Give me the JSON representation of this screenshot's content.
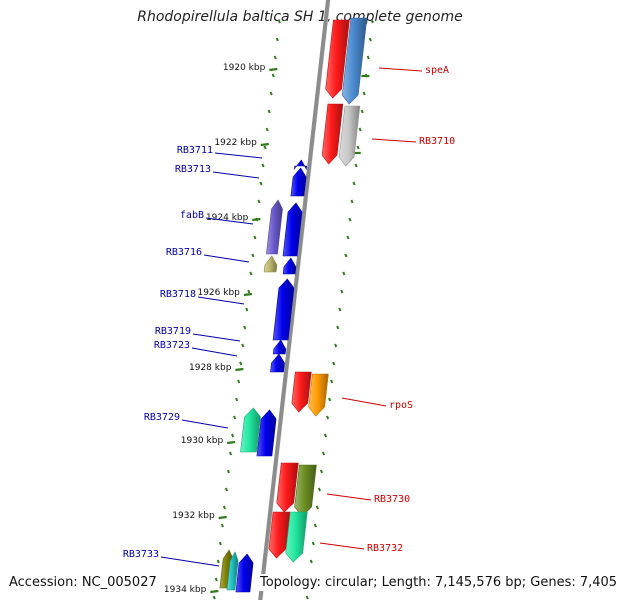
{
  "title": "Rhodopirellula baltica SH 1, complete genome",
  "footer": {
    "accession": "Accession: NC_005027",
    "topology": "Topology: circular; Length: 7,145,576 bp; Genes: 7,405"
  },
  "colors": {
    "backbone": "#8c8c8c",
    "tick": "#2e7d1a",
    "forward_label": "#cc0000",
    "reverse_label": "#0000aa"
  },
  "kbp_ticks": [
    "1920 kbp",
    "1922 kbp",
    "1924 kbp",
    "1926 kbp",
    "1928 kbp",
    "1930 kbp",
    "1932 kbp",
    "1934 kbp"
  ],
  "forward_genes": [
    {
      "name": "speA",
      "color": "#ff1a1a"
    },
    {
      "name": "",
      "color": "#4a8ad0"
    },
    {
      "name": "RB3710",
      "color": "#ff1a1a"
    },
    {
      "name": "",
      "color": "#c8c8c8"
    },
    {
      "name": "rpoS",
      "color": "#ff1a1a"
    },
    {
      "name": "",
      "color": "#ff9a00"
    },
    {
      "name": "RB3730",
      "color": "#ff1a1a"
    },
    {
      "name": "",
      "color": "#6b8e23"
    },
    {
      "name": "RB3732",
      "color": "#ff1a1a"
    },
    {
      "name": "",
      "color": "#20e8a0"
    }
  ],
  "reverse_genes": [
    {
      "name": "RB3711",
      "color": "#0000ee"
    },
    {
      "name": "RB3713",
      "color": "#0000ee"
    },
    {
      "name": "fabB",
      "color": "#6a5acd"
    },
    {
      "name": "",
      "color": "#0000ee"
    },
    {
      "name": "RB3716",
      "color": "#bdb76b"
    },
    {
      "name": "",
      "color": "#0000ee"
    },
    {
      "name": "RB3718",
      "color": "#0000ee"
    },
    {
      "name": "RB3719",
      "color": "#0000ee"
    },
    {
      "name": "RB3723",
      "color": "#0000ee"
    },
    {
      "name": "RB3729",
      "color": "#20e8a0"
    },
    {
      "name": "",
      "color": "#0000ee"
    },
    {
      "name": "RB3733",
      "color": "#808000"
    },
    {
      "name": "",
      "color": "#20c0c0"
    },
    {
      "name": "",
      "color": "#0000ee"
    }
  ]
}
